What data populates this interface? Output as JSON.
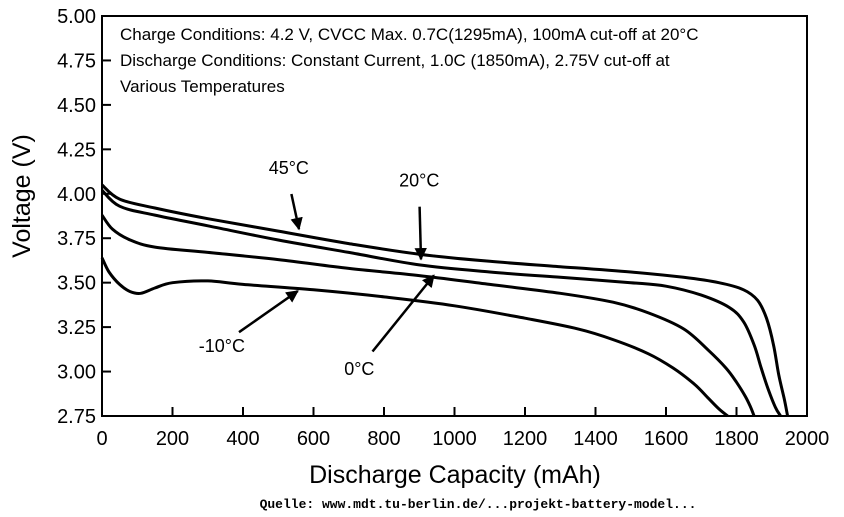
{
  "chart_data": {
    "type": "line",
    "xlabel": "Discharge Capacity (mAh)",
    "ylabel": "Voltage (V)",
    "xlim": [
      0,
      2000
    ],
    "ylim": [
      2.75,
      5.0
    ],
    "x_ticks": [
      "0",
      "200",
      "400",
      "600",
      "800",
      "1000",
      "1200",
      "1400",
      "1600",
      "1800",
      "2000"
    ],
    "y_ticks": [
      "2.75",
      "3.00",
      "3.25",
      "3.50",
      "3.75",
      "4.00",
      "4.25",
      "4.50",
      "4.75",
      "5.00"
    ],
    "grid": false,
    "annotations": [
      "Charge Conditions: 4.2 V, CVCC Max. 0.7C(1295mA), 100mA cut-off at 20°C",
      "Discharge Conditions: Constant Current, 1.0C (1850mA), 2.75V cut-off at",
      "Various Temperatures"
    ],
    "series": [
      {
        "name": "45°C",
        "x": [
          0,
          50,
          150,
          300,
          500,
          700,
          900,
          1100,
          1300,
          1500,
          1650,
          1750,
          1820,
          1860,
          1885,
          1905,
          1920,
          1935,
          1945
        ],
        "y": [
          4.05,
          3.97,
          3.92,
          3.86,
          3.79,
          3.72,
          3.66,
          3.62,
          3.59,
          3.56,
          3.53,
          3.5,
          3.46,
          3.4,
          3.3,
          3.15,
          2.98,
          2.85,
          2.75
        ]
      },
      {
        "name": "20°C",
        "x": [
          0,
          50,
          150,
          300,
          500,
          700,
          900,
          1100,
          1300,
          1500,
          1600,
          1700,
          1780,
          1820,
          1850,
          1870,
          1890,
          1910,
          1925
        ],
        "y": [
          4.02,
          3.93,
          3.88,
          3.82,
          3.74,
          3.67,
          3.6,
          3.56,
          3.53,
          3.5,
          3.48,
          3.43,
          3.36,
          3.28,
          3.15,
          3.02,
          2.9,
          2.8,
          2.75
        ]
      },
      {
        "name": "0°C",
        "x": [
          0,
          30,
          80,
          150,
          300,
          500,
          700,
          900,
          1100,
          1300,
          1450,
          1550,
          1650,
          1720,
          1770,
          1800,
          1825,
          1840,
          1850
        ],
        "y": [
          3.88,
          3.8,
          3.74,
          3.7,
          3.67,
          3.63,
          3.58,
          3.54,
          3.49,
          3.44,
          3.39,
          3.33,
          3.24,
          3.12,
          3.02,
          2.94,
          2.86,
          2.8,
          2.75
        ]
      },
      {
        "name": "-10°C",
        "x": [
          0,
          20,
          50,
          80,
          110,
          150,
          200,
          300,
          400,
          600,
          800,
          1000,
          1200,
          1350,
          1450,
          1550,
          1620,
          1680,
          1720,
          1750,
          1775
        ],
        "y": [
          3.64,
          3.56,
          3.49,
          3.45,
          3.44,
          3.47,
          3.5,
          3.51,
          3.49,
          3.46,
          3.42,
          3.37,
          3.3,
          3.24,
          3.18,
          3.1,
          3.02,
          2.93,
          2.85,
          2.79,
          2.75
        ]
      }
    ],
    "curve_labels": [
      {
        "text": "45°C",
        "x": 530,
        "y": 4.11,
        "arrow_to": [
          560,
          3.79
        ]
      },
      {
        "text": "20°C",
        "x": 900,
        "y": 4.04,
        "arrow_to": [
          905,
          3.62
        ]
      },
      {
        "text": "0°C",
        "x": 730,
        "y": 2.98,
        "arrow_to": [
          945,
          3.55
        ]
      },
      {
        "text": "-10°C",
        "x": 340,
        "y": 3.11,
        "arrow_to": [
          560,
          3.46
        ]
      }
    ]
  },
  "footer": {
    "source": "Quelle: www.mdt.tu-berlin.de/...projekt-battery-model..."
  }
}
